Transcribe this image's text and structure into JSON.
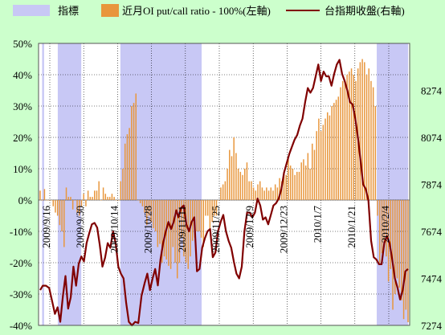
{
  "chart_data": {
    "type": "bar",
    "legend": [
      {
        "label": "指標",
        "color": "#C8C8F5"
      },
      {
        "label": "近月OI put/call ratio - 100%(左軸)",
        "color": "#E8963C"
      },
      {
        "label": "台指期收盤(右軸)",
        "color": "#800000"
      }
    ],
    "left_axis": {
      "min": -40,
      "max": 50,
      "ticks": [
        "-40%",
        "-30%",
        "-20%",
        "-10%",
        "0%",
        "10%",
        "20%",
        "30%",
        "40%",
        "50%"
      ]
    },
    "right_axis": {
      "min": 7274,
      "max": 8474,
      "ticks": [
        "7274",
        "7474",
        "7674",
        "7874",
        "8074",
        "8274"
      ]
    },
    "x_labels": [
      "2009/9/16",
      "2009/9/30",
      "2009/10/14",
      "2009/10/28",
      "2009/11/11",
      "2009/11/25",
      "2009/12/9",
      "2009/12/23",
      "2010/1/7",
      "2010/1/21",
      "2010/2/4"
    ],
    "indicator_regions": [
      [
        2,
        4
      ],
      [
        18,
        42
      ],
      [
        82,
        165
      ],
      [
        344,
        376
      ]
    ],
    "bar_values": [
      3,
      0,
      3.5,
      0,
      0,
      0,
      -2,
      -4,
      -5,
      -8,
      -10,
      -15,
      4,
      1,
      1,
      -3,
      0,
      -4,
      -5,
      -2,
      2,
      -2,
      3,
      1,
      1,
      3,
      3,
      6,
      0,
      4,
      2,
      1,
      1,
      2,
      1,
      0,
      0,
      6,
      10,
      18,
      21,
      23,
      30,
      31,
      34,
      0,
      -1,
      -2,
      -4,
      -8,
      -5,
      -7,
      -9,
      -10,
      -15,
      -14,
      -20,
      -18,
      -19,
      -21,
      -22,
      -15,
      -20,
      -25,
      -20,
      -12,
      -18,
      -20,
      -22,
      -18,
      -13,
      -12,
      -10,
      -10,
      -12,
      -15,
      -5,
      -5,
      -9,
      -7,
      -5,
      -5,
      0,
      4,
      5,
      6,
      10,
      16,
      14,
      20,
      15,
      10,
      9,
      8,
      10,
      12,
      6,
      6,
      4,
      3,
      5,
      6,
      4,
      3,
      4,
      3,
      4,
      3,
      5,
      4,
      7,
      6,
      9,
      8,
      13,
      11,
      10,
      8,
      9,
      9,
      12,
      13,
      11,
      15,
      10,
      18,
      16,
      22,
      26,
      22,
      24,
      26,
      28,
      27,
      30,
      31,
      32,
      33,
      36,
      38,
      38,
      40,
      41,
      42,
      40,
      38,
      42,
      44,
      45,
      44,
      40,
      42,
      38,
      36,
      30,
      -5,
      -20,
      -17,
      -15,
      -18,
      -26,
      -22,
      -35,
      -30,
      -25,
      -28,
      -32,
      -38,
      -35,
      -39
    ],
    "price_series": [
      [
        0,
        7424
      ],
      [
        5,
        7443
      ],
      [
        11,
        7443
      ],
      [
        17,
        7433
      ],
      [
        23,
        7374
      ],
      [
        28,
        7323
      ],
      [
        33,
        7351
      ],
      [
        38,
        7289
      ],
      [
        43,
        7398
      ],
      [
        48,
        7484
      ],
      [
        53,
        7345
      ],
      [
        58,
        7394
      ],
      [
        63,
        7524
      ],
      [
        68,
        7443
      ],
      [
        73,
        7536
      ],
      [
        78,
        7567
      ],
      [
        83,
        7546
      ],
      [
        88,
        7624
      ],
      [
        93,
        7666
      ],
      [
        98,
        7704
      ],
      [
        103,
        7710
      ],
      [
        108,
        7690
      ],
      [
        113,
        7614
      ],
      [
        118,
        7524
      ],
      [
        123,
        7562
      ],
      [
        128,
        7624
      ],
      [
        133,
        7604
      ],
      [
        138,
        7674
      ],
      [
        143,
        7624
      ],
      [
        148,
        7524
      ],
      [
        153,
        7494
      ],
      [
        158,
        7474
      ],
      [
        163,
        7369
      ],
      [
        168,
        7289
      ],
      [
        174,
        7274
      ],
      [
        180,
        7289
      ],
      [
        186,
        7284
      ],
      [
        192,
        7400
      ],
      [
        198,
        7454
      ],
      [
        203,
        7494
      ],
      [
        208,
        7424
      ],
      [
        213,
        7474
      ],
      [
        218,
        7514
      ],
      [
        223,
        7444
      ],
      [
        228,
        7554
      ],
      [
        233,
        7624
      ],
      [
        238,
        7674
      ],
      [
        243,
        7714
      ],
      [
        248,
        7684
      ],
      [
        253,
        7714
      ],
      [
        258,
        7764
      ],
      [
        262,
        7734
      ],
      [
        267,
        7774
      ],
      [
        272,
        7784
      ],
      [
        277,
        7704
      ],
      [
        282,
        7674
      ],
      [
        287,
        7714
      ],
      [
        292,
        7734
      ],
      [
        297,
        7504
      ],
      [
        302,
        7514
      ],
      [
        307,
        7604
      ],
      [
        312,
        7644
      ],
      [
        317,
        7674
      ],
      [
        322,
        7684
      ],
      [
        327,
        7564
      ],
      [
        332,
        7584
      ],
      [
        337,
        7674
      ],
      [
        342,
        7714
      ],
      [
        347,
        7744
      ],
      [
        352,
        7674
      ],
      [
        357,
        7634
      ],
      [
        362,
        7604
      ],
      [
        367,
        7544
      ],
      [
        372,
        7494
      ],
      [
        377,
        7474
      ],
      [
        382,
        7524
      ],
      [
        387,
        7674
      ],
      [
        392,
        7754
      ],
      [
        397,
        7754
      ],
      [
        402,
        7734
      ],
      [
        407,
        7754
      ],
      [
        412,
        7814
      ],
      [
        417,
        7784
      ],
      [
        422,
        7724
      ],
      [
        427,
        7734
      ],
      [
        432,
        7704
      ],
      [
        437,
        7744
      ],
      [
        442,
        7784
      ],
      [
        447,
        7794
      ],
      [
        452,
        7814
      ],
      [
        457,
        7854
      ],
      [
        462,
        7924
      ],
      [
        467,
        7964
      ],
      [
        472,
        8004
      ],
      [
        477,
        8034
      ],
      [
        482,
        8064
      ],
      [
        487,
        8084
      ],
      [
        492,
        8124
      ],
      [
        497,
        8154
      ],
      [
        502,
        8224
      ],
      [
        507,
        8284
      ],
      [
        512,
        8264
      ],
      [
        517,
        8284
      ],
      [
        522,
        8334
      ],
      [
        527,
        8384
      ],
      [
        532,
        8314
      ],
      [
        537,
        8354
      ],
      [
        542,
        8334
      ],
      [
        547,
        8334
      ],
      [
        552,
        8294
      ],
      [
        557,
        8344
      ],
      [
        562,
        8384
      ],
      [
        567,
        8404
      ],
      [
        572,
        8344
      ],
      [
        577,
        8314
      ],
      [
        582,
        8274
      ],
      [
        587,
        8224
      ],
      [
        592,
        8214
      ],
      [
        597,
        8154
      ],
      [
        602,
        8074
      ],
      [
        607,
        7974
      ],
      [
        612,
        7874
      ],
      [
        617,
        7854
      ],
      [
        622,
        7804
      ],
      [
        627,
        7634
      ],
      [
        632,
        7564
      ],
      [
        637,
        7554
      ],
      [
        642,
        7534
      ],
      [
        647,
        7534
      ],
      [
        652,
        7624
      ],
      [
        657,
        7654
      ],
      [
        662,
        7624
      ],
      [
        667,
        7554
      ],
      [
        672,
        7474
      ],
      [
        677,
        7434
      ],
      [
        682,
        7384
      ],
      [
        687,
        7424
      ],
      [
        692,
        7504
      ],
      [
        697,
        7514
      ]
    ]
  }
}
